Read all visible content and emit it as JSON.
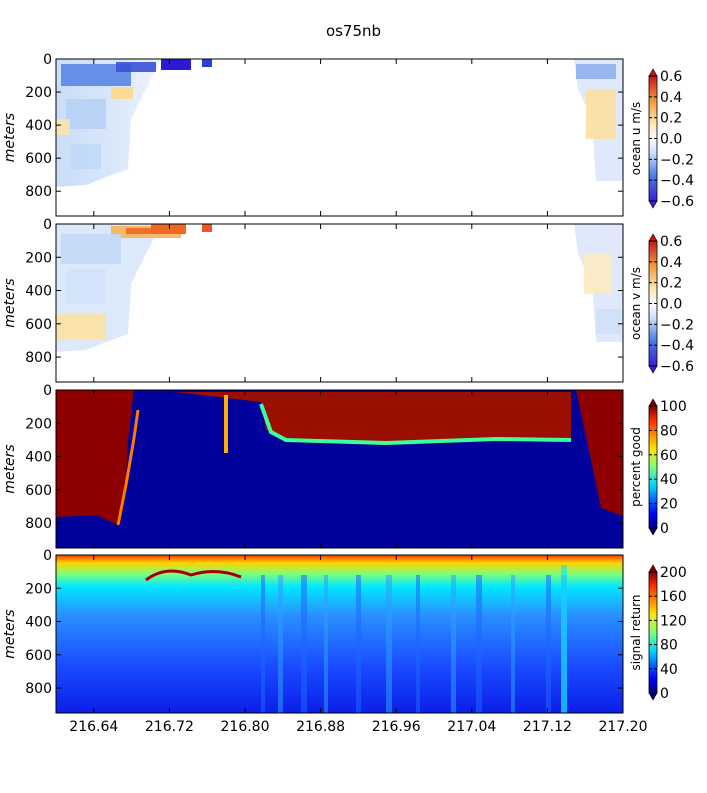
{
  "figure": {
    "title": "os75nb"
  },
  "chart_data": [
    {
      "type": "heatmap",
      "id": "u",
      "ylabel": "meters",
      "yticks": [
        0,
        200,
        400,
        600,
        800
      ],
      "ylim": [
        950,
        0
      ],
      "xlim": [
        216.6,
        217.2
      ],
      "xticks": [
        216.64,
        216.72,
        216.8,
        216.88,
        216.96,
        217.04,
        217.12,
        217.2
      ],
      "x_ticklabels_visible": false,
      "colorbar": {
        "label": "ocean u m/s",
        "ticks": [
          "0.6",
          "0.4",
          "0.2",
          "0.0",
          "−0.2",
          "−0.4",
          "−0.6"
        ],
        "range": [
          -0.6,
          0.6
        ],
        "colormap": "blue-white-red"
      }
    },
    {
      "type": "heatmap",
      "id": "v",
      "ylabel": "meters",
      "yticks": [
        0,
        200,
        400,
        600,
        800
      ],
      "ylim": [
        950,
        0
      ],
      "xlim": [
        216.6,
        217.2
      ],
      "x_ticklabels_visible": false,
      "colorbar": {
        "label": "ocean v m/s",
        "ticks": [
          "0.6",
          "0.4",
          "0.2",
          "0.0",
          "−0.2",
          "−0.4",
          "−0.6"
        ],
        "range": [
          -0.6,
          0.6
        ],
        "colormap": "blue-white-red"
      }
    },
    {
      "type": "heatmap",
      "id": "pg",
      "ylabel": "meters",
      "yticks": [
        0,
        200,
        400,
        600,
        800
      ],
      "ylim": [
        950,
        0
      ],
      "xlim": [
        216.6,
        217.2
      ],
      "x_ticklabels_visible": false,
      "colorbar": {
        "label": "percent good",
        "ticks": [
          "100",
          "80",
          "60",
          "40",
          "20",
          "0"
        ],
        "range": [
          0,
          100
        ],
        "colormap": "jet"
      }
    },
    {
      "type": "heatmap",
      "id": "amp",
      "ylabel": "meters",
      "yticks": [
        0,
        200,
        400,
        600,
        800
      ],
      "ylim": [
        950,
        0
      ],
      "xlim": [
        216.6,
        217.2
      ],
      "x_ticklabels": [
        "216.64",
        "216.72",
        "216.80",
        "216.88",
        "216.96",
        "217.04",
        "217.12",
        "217.20"
      ],
      "x_ticklabels_visible": true,
      "colorbar": {
        "label": "signal return",
        "ticks": [
          "200",
          "160",
          "120",
          "80",
          "40",
          "0"
        ],
        "range": [
          0,
          200
        ],
        "colormap": "jet"
      }
    }
  ]
}
